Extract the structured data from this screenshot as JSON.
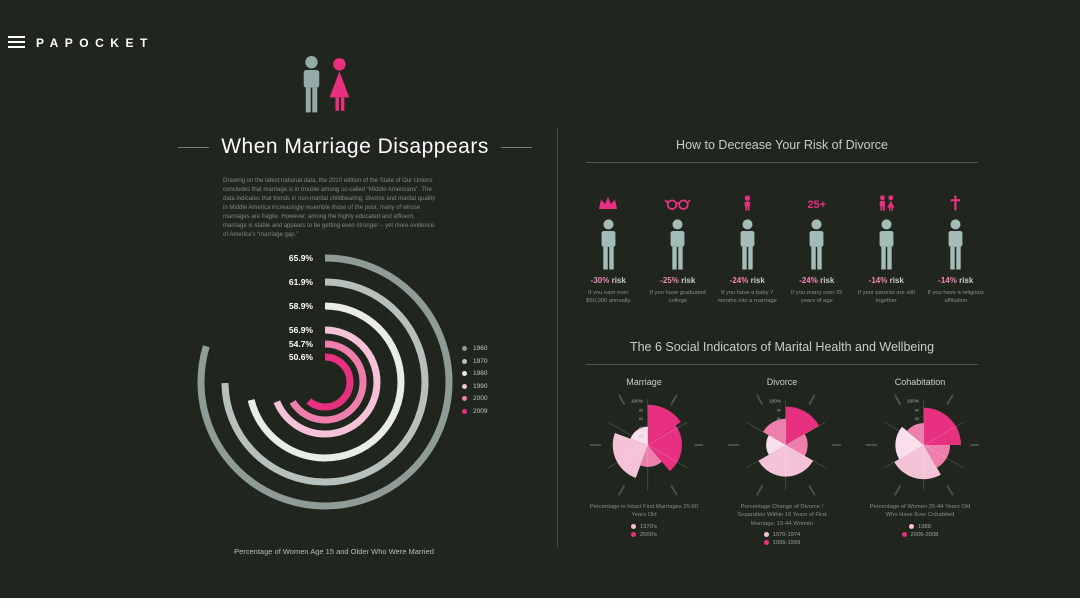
{
  "app": {
    "brand": "PAPOCKET"
  },
  "left": {
    "title": "When Marriage Disappears",
    "intro": "Drawing on the latest national data, the 2010 edition of the State of Our Unions concludes that marriage is in trouble among so-called “Middle Americans”. The data indicates that trends in non-marital childbearing, divorce and marital quality in Middle America increasingly resemble those of the poor, many of whose marriages are fragile. However, among the highly educated and affluent, marriage is stable and appears to be getting even stronger – yet more evidence of America's “marriage gap.”",
    "chart_caption": "Percentage of Women Age 15 and Older Who Were Married"
  },
  "risk": {
    "title": "How to Decrease Your Risk of Divorce",
    "risk_suffix": "risk",
    "items": [
      {
        "icon": "wealth-icon",
        "risk": "-30%",
        "label": "If you earn over $50,000 annually"
      },
      {
        "icon": "glasses-icon",
        "risk": "-25%",
        "label": "If you have graduated college"
      },
      {
        "icon": "baby-icon",
        "risk": "-24%",
        "label": "If you have a baby 7 months into a marriage"
      },
      {
        "icon": "age-25-label",
        "age_text": "25+",
        "risk": "-24%",
        "label": "If you marry over 25 years of age"
      },
      {
        "icon": "parents-icon",
        "risk": "-14%",
        "label": "If your parents are still together"
      },
      {
        "icon": "cross-icon",
        "risk": "-14%",
        "label": "If you have a religious affiliation"
      }
    ]
  },
  "social": {
    "title": "The 6 Social Indicators of Marital Health and Wellbeing"
  },
  "chart_data": [
    {
      "type": "radial-bar",
      "title": "Percentage of Women Age 15 and Older Who Were Married",
      "categories": [
        "1960",
        "1970",
        "1980",
        "1990",
        "2000",
        "2009"
      ],
      "values": [
        65.9,
        61.9,
        58.9,
        56.9,
        54.7,
        50.6
      ],
      "labels": [
        "65.9%",
        "61.9%",
        "58.9%",
        "56.9%",
        "54.7%",
        "50.6%"
      ],
      "unit": "%",
      "colors": [
        "#8e9b97",
        "#b6c1bd",
        "#e9ece9",
        "#f4c3d8",
        "#ee7fad",
        "#e73180"
      ],
      "legend_position": "right"
    },
    {
      "type": "pie",
      "title": "Marriage",
      "caption": "Percentage in Intact First Marriages 25-60 Years Old",
      "legend": [
        {
          "label": "1970's",
          "color": "#f4c3d8"
        },
        {
          "label": "2000's",
          "color": "#e73180"
        }
      ],
      "axis_ticks": [
        "100%",
        "80",
        "60",
        "40",
        "20"
      ],
      "slices": [
        {
          "start": 0,
          "end": 55,
          "r": 0.92,
          "color": "#e73180"
        },
        {
          "start": 55,
          "end": 140,
          "r": 0.78,
          "color": "#e73180"
        },
        {
          "start": 140,
          "end": 200,
          "r": 0.5,
          "color": "#ee7fad"
        },
        {
          "start": 200,
          "end": 290,
          "r": 0.8,
          "color": "#f4c3d8"
        },
        {
          "start": 290,
          "end": 360,
          "r": 0.42,
          "color": "#f9dfec"
        }
      ]
    },
    {
      "type": "pie",
      "title": "Divorce",
      "caption": "Percentage Change of Divorce / Separation Within 10 Years of First Marriage, 15-44 Women",
      "legend": [
        {
          "label": "1970-1974",
          "color": "#f4c3d8"
        },
        {
          "label": "1995-1999",
          "color": "#e73180"
        }
      ],
      "axis_ticks": [
        "100%",
        "80",
        "60",
        "40",
        "20"
      ],
      "slices": [
        {
          "start": 0,
          "end": 60,
          "r": 0.88,
          "color": "#e73180"
        },
        {
          "start": 60,
          "end": 120,
          "r": 0.5,
          "color": "#ee7fad"
        },
        {
          "start": 120,
          "end": 240,
          "r": 0.72,
          "color": "#f4c3d8"
        },
        {
          "start": 240,
          "end": 300,
          "r": 0.45,
          "color": "#f9dfec"
        },
        {
          "start": 300,
          "end": 360,
          "r": 0.6,
          "color": "#ee7fad"
        }
      ]
    },
    {
      "type": "pie",
      "title": "Cohabitation",
      "caption": "Percentage of Women 25-44 Years Old Who Have Ever Cohabited",
      "legend": [
        {
          "label": "1988",
          "color": "#f4c3d8"
        },
        {
          "label": "2006-2008",
          "color": "#e73180"
        }
      ],
      "axis_ticks": [
        "100%",
        "80",
        "60",
        "40",
        "20"
      ],
      "slices": [
        {
          "start": 0,
          "end": 90,
          "r": 0.85,
          "color": "#e73180"
        },
        {
          "start": 90,
          "end": 150,
          "r": 0.6,
          "color": "#ee7fad"
        },
        {
          "start": 150,
          "end": 240,
          "r": 0.78,
          "color": "#f4c3d8"
        },
        {
          "start": 240,
          "end": 310,
          "r": 0.65,
          "color": "#f9dfec"
        },
        {
          "start": 310,
          "end": 360,
          "r": 0.5,
          "color": "#ee7fad"
        }
      ]
    }
  ]
}
